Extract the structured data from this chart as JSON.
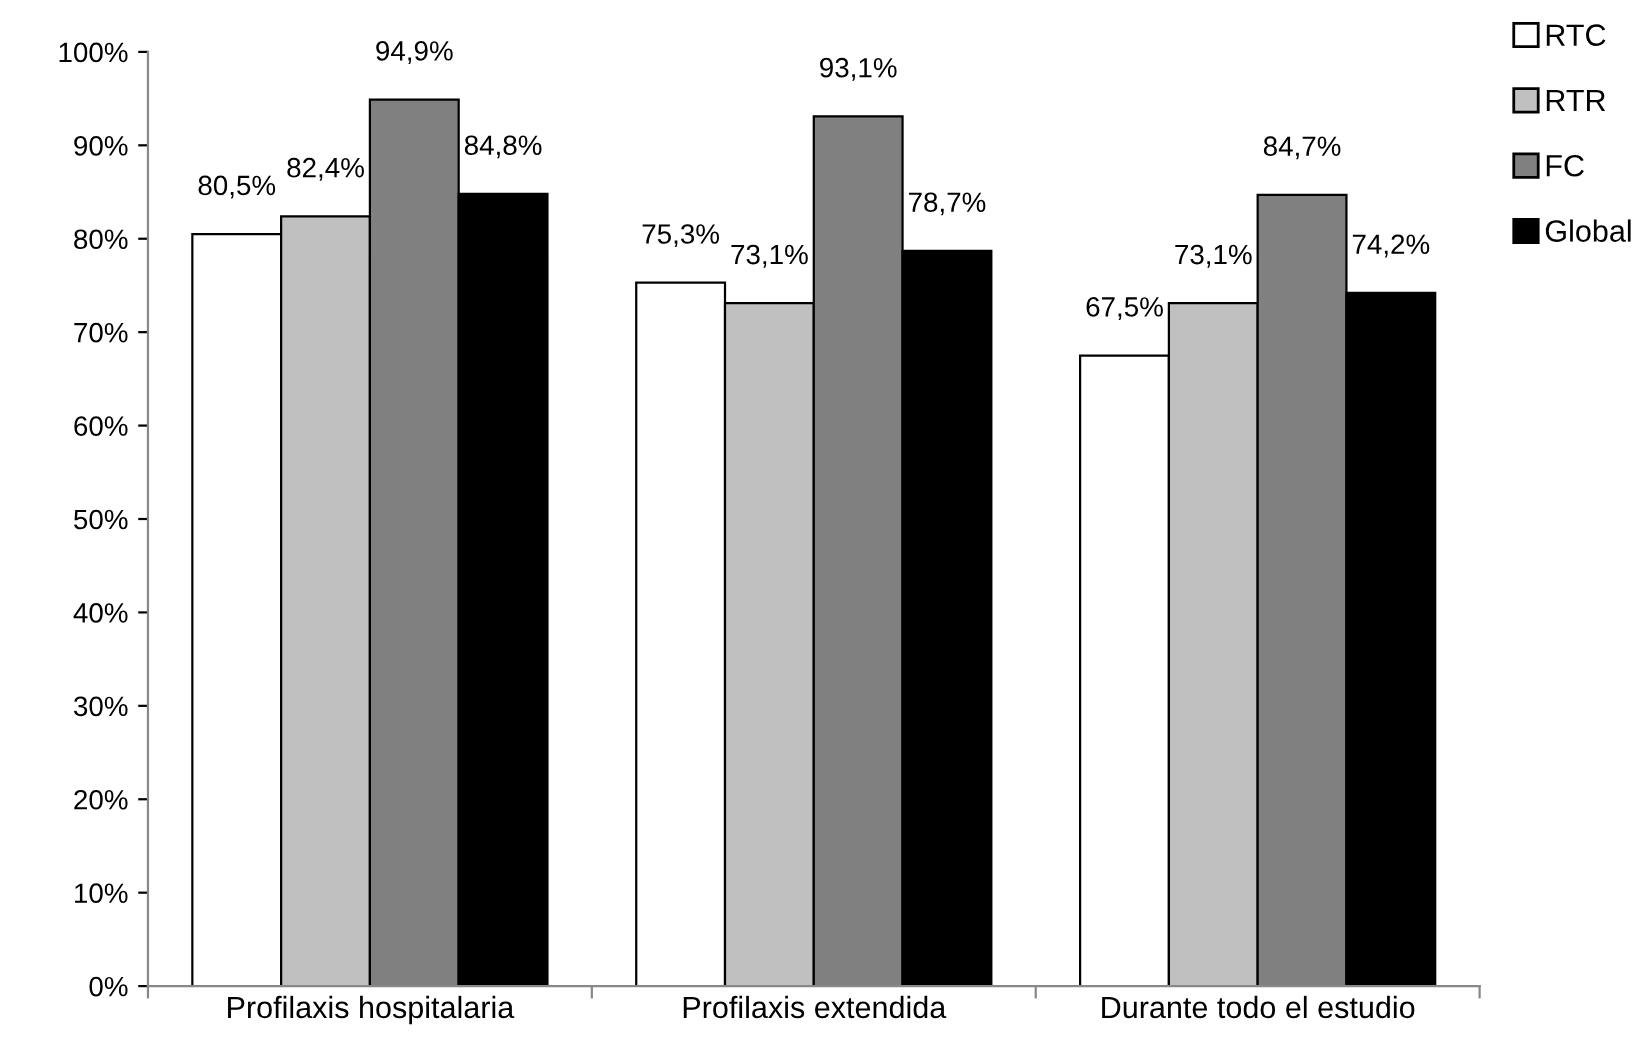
{
  "chart_data": {
    "type": "bar",
    "categories": [
      "Profilaxis hospitalaria",
      "Profilaxis extendida",
      "Durante todo el estudio"
    ],
    "series": [
      {
        "name": "RTC",
        "color": "#ffffff",
        "values": [
          80.5,
          75.3,
          67.5
        ],
        "value_labels": [
          "80,5%",
          "75,3%",
          "67,5%"
        ]
      },
      {
        "name": "RTR",
        "color": "#c0c0c0",
        "values": [
          82.4,
          73.1,
          73.1
        ],
        "value_labels": [
          "82,4%",
          "73,1%",
          "73,1%"
        ]
      },
      {
        "name": "FC",
        "color": "#808080",
        "values": [
          94.9,
          93.1,
          84.7
        ],
        "value_labels": [
          "94,9%",
          "93,1%",
          "84,7%"
        ]
      },
      {
        "name": "Global",
        "color": "#000000",
        "values": [
          84.8,
          78.7,
          74.2
        ],
        "value_labels": [
          "84,8%",
          "78,7%",
          "74,2%"
        ]
      }
    ],
    "ylim": [
      0,
      100
    ],
    "yticks": [
      {
        "value": 0,
        "label": "0%"
      },
      {
        "value": 10,
        "label": "10%"
      },
      {
        "value": 20,
        "label": "20%"
      },
      {
        "value": 30,
        "label": "30%"
      },
      {
        "value": 40,
        "label": "40%"
      },
      {
        "value": 50,
        "label": "50%"
      },
      {
        "value": 60,
        "label": "60%"
      },
      {
        "value": 70,
        "label": "70%"
      },
      {
        "value": 80,
        "label": "80%"
      },
      {
        "value": 90,
        "label": "90%"
      },
      {
        "value": 100,
        "label": "100%"
      }
    ],
    "grid": false,
    "legend": "top right"
  }
}
